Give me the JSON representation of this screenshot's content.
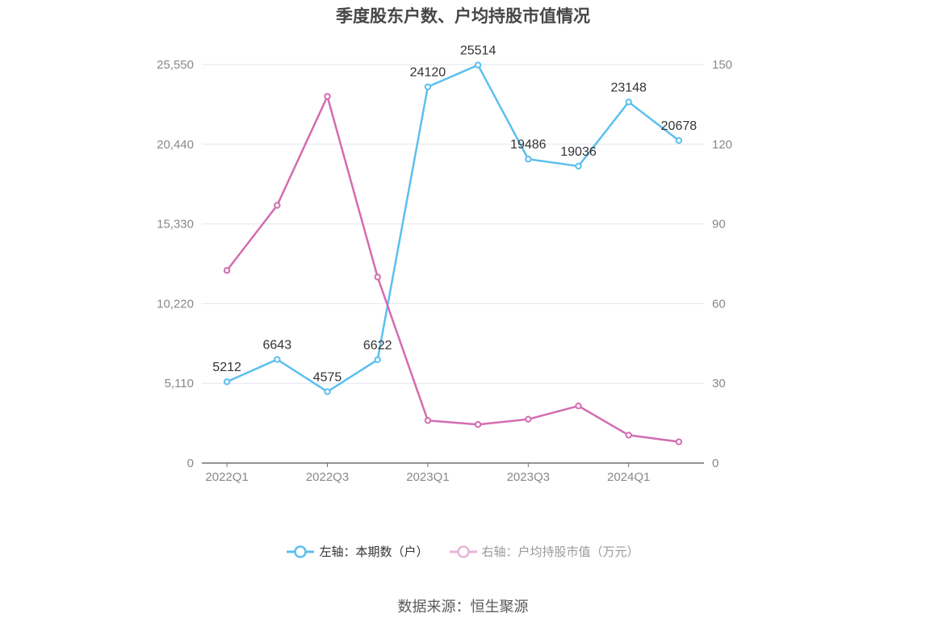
{
  "title": "季度股东户数、户均持股市值情况",
  "legend": {
    "left_series": "左轴：本期数（户）",
    "right_series": "右轴：户均持股市值（万元）"
  },
  "source": "数据来源：恒生聚源",
  "colors": {
    "left": "#5bc0ee",
    "right": "#d36cb0",
    "axis_text": "#888888",
    "grid": "#e3e6ef"
  },
  "chart_data": {
    "type": "line",
    "title": "季度股东户数、户均持股市值情况",
    "categories": [
      "2022Q1",
      "2022Q2",
      "2022Q3",
      "2022Q4",
      "2023Q1",
      "2023Q2",
      "2023Q3",
      "2023Q4",
      "2024Q1",
      "2024Q2"
    ],
    "x_tick_labels": [
      "2022Q1",
      "2022Q3",
      "2023Q1",
      "2023Q3",
      "2024Q1"
    ],
    "left_axis": {
      "ylim": [
        0,
        25550
      ],
      "ticks": [
        "0",
        "5,110",
        "10,220",
        "15,330",
        "20,440",
        "25,550"
      ]
    },
    "right_axis": {
      "ylim": [
        0,
        150
      ],
      "ticks": [
        "0",
        "30",
        "60",
        "90",
        "120",
        "150"
      ]
    },
    "series": [
      {
        "name": "本期数（户）",
        "axis": "left",
        "values": [
          5212,
          6643,
          4575,
          6622,
          24120,
          25514,
          19486,
          19036,
          23148,
          20678
        ],
        "labels": [
          "5212",
          "6643",
          "4575",
          "6622",
          "24120",
          "25514",
          "19486",
          "19036",
          "23148",
          "20678"
        ]
      },
      {
        "name": "户均持股市值（万元）",
        "axis": "right",
        "values": [
          72.5,
          97,
          138,
          70,
          16,
          14.5,
          16.5,
          21.5,
          10.5,
          8
        ]
      }
    ],
    "grid": true,
    "legend_position": "bottom"
  }
}
